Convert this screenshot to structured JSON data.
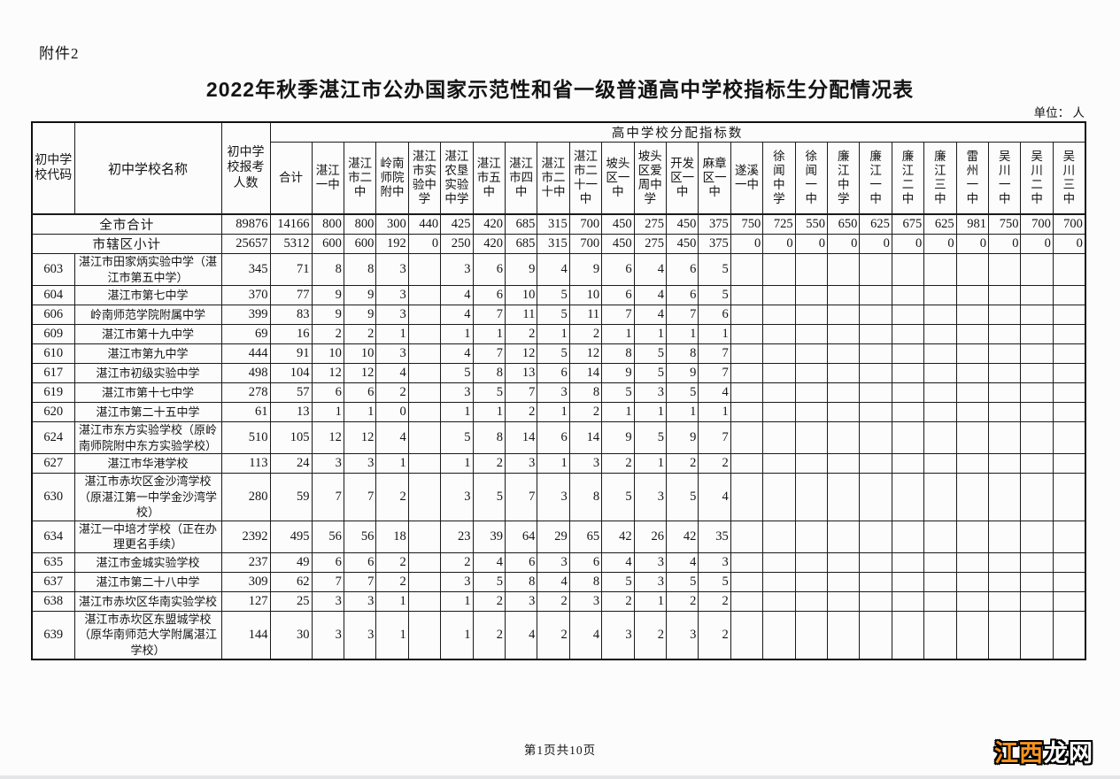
{
  "page": {
    "attachment_label": "附件2",
    "title": "2022年秋季湛江市公办国家示范性和省一级普通高中学校指标生分配情况表",
    "unit_label": "单位： 人",
    "footer": "第1页共10页",
    "watermark": {
      "part1": "江西",
      "part2": "龙网",
      "part1_color": "#f7931e",
      "part2_color": "#ffffff",
      "outline_color": "#000000"
    }
  },
  "table": {
    "header": {
      "code_label": "初中学校代码",
      "name_label": "初中学校名称",
      "applicants_label": "初中学校报考人数",
      "group_label": "高中学校分配指标数",
      "school_columns": [
        "合计",
        "湛江一中",
        "湛江市二中",
        "岭南师院附中",
        "湛江市实验中学",
        "湛江农垦实验中学",
        "湛江市五中",
        "湛江市四中",
        "湛江市二十中",
        "湛江市二十一中",
        "坡头区一中",
        "坡头区爱周中学",
        "开发区一中",
        "麻章区一中",
        "遂溪一中",
        "徐闻中学",
        "徐闻一中",
        "廉江中学",
        "廉江一中",
        "廉江二中",
        "廉江三中",
        "雷州一中",
        "吴川一中",
        "吴川二中",
        "吴川三中"
      ]
    },
    "summary_rows": [
      {
        "name": "全市合计",
        "applicants": "89876",
        "values": [
          "14166",
          "800",
          "800",
          "300",
          "440",
          "425",
          "420",
          "685",
          "315",
          "700",
          "450",
          "275",
          "450",
          "375",
          "750",
          "725",
          "550",
          "650",
          "625",
          "675",
          "625",
          "981",
          "750",
          "700",
          "700"
        ]
      },
      {
        "name": "市辖区小计",
        "applicants": "25657",
        "values": [
          "5312",
          "600",
          "600",
          "192",
          "0",
          "250",
          "420",
          "685",
          "315",
          "700",
          "450",
          "275",
          "450",
          "375",
          "0",
          "0",
          "0",
          "0",
          "0",
          "0",
          "0",
          "0",
          "0",
          "0",
          "0"
        ]
      }
    ],
    "rows": [
      {
        "code": "603",
        "name": "湛江市田家炳实验中学（湛江市第五中学）",
        "applicants": "345",
        "values": [
          "71",
          "8",
          "8",
          "3",
          "",
          "3",
          "6",
          "9",
          "4",
          "9",
          "6",
          "4",
          "6",
          "5",
          "",
          "",
          "",
          "",
          "",
          "",
          "",
          "",
          "",
          "",
          ""
        ]
      },
      {
        "code": "604",
        "name": "湛江市第七中学",
        "applicants": "370",
        "values": [
          "77",
          "9",
          "9",
          "3",
          "",
          "4",
          "6",
          "10",
          "5",
          "10",
          "6",
          "4",
          "6",
          "5",
          "",
          "",
          "",
          "",
          "",
          "",
          "",
          "",
          "",
          "",
          ""
        ]
      },
      {
        "code": "606",
        "name": "岭南师范学院附属中学",
        "applicants": "399",
        "values": [
          "83",
          "9",
          "9",
          "3",
          "",
          "4",
          "7",
          "11",
          "5",
          "11",
          "7",
          "4",
          "7",
          "6",
          "",
          "",
          "",
          "",
          "",
          "",
          "",
          "",
          "",
          "",
          ""
        ]
      },
      {
        "code": "609",
        "name": "湛江市第十九中学",
        "applicants": "69",
        "values": [
          "16",
          "2",
          "2",
          "1",
          "",
          "1",
          "1",
          "2",
          "1",
          "2",
          "1",
          "1",
          "1",
          "1",
          "",
          "",
          "",
          "",
          "",
          "",
          "",
          "",
          "",
          "",
          ""
        ]
      },
      {
        "code": "610",
        "name": "湛江市第九中学",
        "applicants": "444",
        "values": [
          "91",
          "10",
          "10",
          "3",
          "",
          "4",
          "7",
          "12",
          "5",
          "12",
          "8",
          "5",
          "8",
          "7",
          "",
          "",
          "",
          "",
          "",
          "",
          "",
          "",
          "",
          "",
          ""
        ]
      },
      {
        "code": "617",
        "name": "湛江市初级实验中学",
        "applicants": "498",
        "values": [
          "104",
          "12",
          "12",
          "4",
          "",
          "5",
          "8",
          "13",
          "6",
          "14",
          "9",
          "5",
          "9",
          "7",
          "",
          "",
          "",
          "",
          "",
          "",
          "",
          "",
          "",
          "",
          ""
        ]
      },
      {
        "code": "619",
        "name": "湛江市第十七中学",
        "applicants": "278",
        "values": [
          "57",
          "6",
          "6",
          "2",
          "",
          "3",
          "5",
          "7",
          "3",
          "8",
          "5",
          "3",
          "5",
          "4",
          "",
          "",
          "",
          "",
          "",
          "",
          "",
          "",
          "",
          "",
          ""
        ]
      },
      {
        "code": "620",
        "name": "湛江市第二十五中学",
        "applicants": "61",
        "values": [
          "13",
          "1",
          "1",
          "0",
          "",
          "1",
          "1",
          "2",
          "1",
          "2",
          "1",
          "1",
          "1",
          "1",
          "",
          "",
          "",
          "",
          "",
          "",
          "",
          "",
          "",
          "",
          ""
        ]
      },
      {
        "code": "624",
        "name": "湛江市东方实验学校（原岭南师院附中东方实验学校）",
        "applicants": "510",
        "values": [
          "105",
          "12",
          "12",
          "4",
          "",
          "5",
          "8",
          "14",
          "6",
          "14",
          "9",
          "5",
          "9",
          "7",
          "",
          "",
          "",
          "",
          "",
          "",
          "",
          "",
          "",
          "",
          ""
        ]
      },
      {
        "code": "627",
        "name": "湛江市华港学校",
        "applicants": "113",
        "values": [
          "24",
          "3",
          "3",
          "1",
          "",
          "1",
          "2",
          "3",
          "1",
          "3",
          "2",
          "1",
          "2",
          "2",
          "",
          "",
          "",
          "",
          "",
          "",
          "",
          "",
          "",
          "",
          ""
        ]
      },
      {
        "code": "630",
        "name": "湛江市赤坎区金沙湾学校（原湛江第一中学金沙湾学校）",
        "applicants": "280",
        "values": [
          "59",
          "7",
          "7",
          "2",
          "",
          "3",
          "5",
          "7",
          "3",
          "8",
          "5",
          "3",
          "5",
          "4",
          "",
          "",
          "",
          "",
          "",
          "",
          "",
          "",
          "",
          "",
          ""
        ]
      },
      {
        "code": "634",
        "name": "湛江一中培才学校（正在办理更名手续）",
        "applicants": "2392",
        "values": [
          "495",
          "56",
          "56",
          "18",
          "",
          "23",
          "39",
          "64",
          "29",
          "65",
          "42",
          "26",
          "42",
          "35",
          "",
          "",
          "",
          "",
          "",
          "",
          "",
          "",
          "",
          "",
          ""
        ]
      },
      {
        "code": "635",
        "name": "湛江市金城实验学校",
        "applicants": "237",
        "values": [
          "49",
          "6",
          "6",
          "2",
          "",
          "2",
          "4",
          "6",
          "3",
          "6",
          "4",
          "3",
          "4",
          "3",
          "",
          "",
          "",
          "",
          "",
          "",
          "",
          "",
          "",
          "",
          ""
        ]
      },
      {
        "code": "637",
        "name": "湛江市第二十八中学",
        "applicants": "309",
        "values": [
          "62",
          "7",
          "7",
          "2",
          "",
          "3",
          "5",
          "8",
          "4",
          "8",
          "5",
          "3",
          "5",
          "5",
          "",
          "",
          "",
          "",
          "",
          "",
          "",
          "",
          "",
          "",
          ""
        ]
      },
      {
        "code": "638",
        "name": "湛江市赤坎区华南实验学校",
        "applicants": "127",
        "values": [
          "25",
          "3",
          "3",
          "1",
          "",
          "1",
          "2",
          "3",
          "2",
          "3",
          "2",
          "1",
          "2",
          "2",
          "",
          "",
          "",
          "",
          "",
          "",
          "",
          "",
          "",
          "",
          ""
        ]
      },
      {
        "code": "639",
        "name": "湛江市赤坎区东盟城学校（原华南师范大学附属湛江学校）",
        "applicants": "144",
        "values": [
          "30",
          "3",
          "3",
          "1",
          "",
          "1",
          "2",
          "4",
          "2",
          "4",
          "3",
          "2",
          "3",
          "2",
          "",
          "",
          "",
          "",
          "",
          "",
          "",
          "",
          "",
          "",
          ""
        ]
      }
    ]
  }
}
